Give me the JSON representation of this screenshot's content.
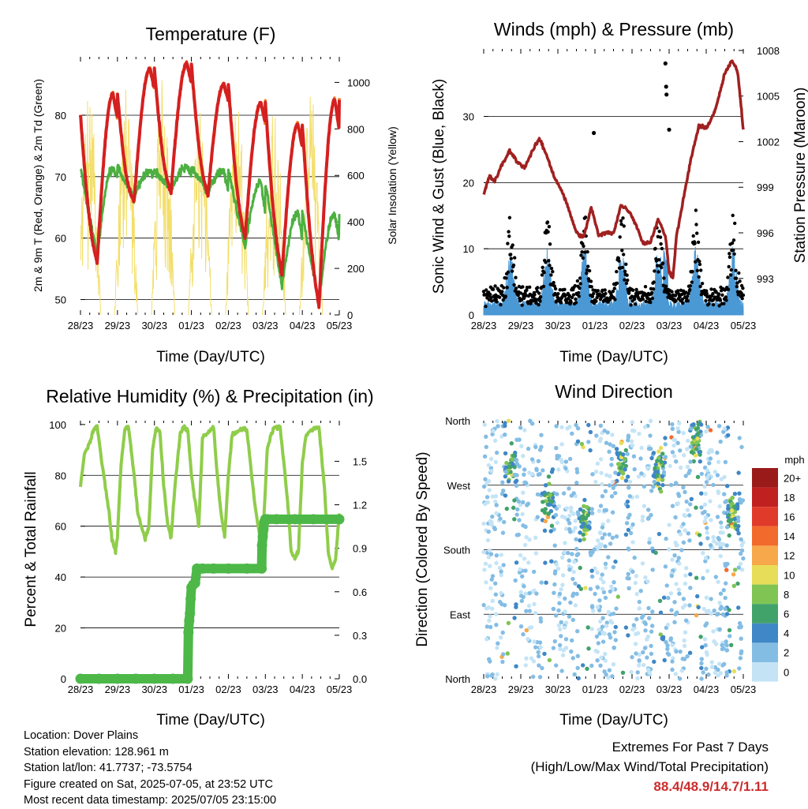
{
  "footer": {
    "location": "Location: Dover Plains",
    "elevation": "Station elevation: 128.961 m",
    "latlon": "Station lat/lon: 41.7737; -73.5754",
    "created": "Figure created on Sat, 2025-07-05, at 23:52 UTC",
    "recent": "Most recent data timestamp: 2025/07/05 23:15:00",
    "extremes_title": "Extremes For Past 7 Days",
    "extremes_subtitle": "(High/Low/Max Wind/Total Precipitation)",
    "extremes_values": "88.4/48.9/14.7/1.11"
  },
  "chart_data": [
    {
      "type": "line",
      "title": "Temperature (F)",
      "xlabel": "Time (Day/UTC)",
      "ylabel": "2m & 9m T (Red, Orange) & 2m Td (Green)",
      "y2label": "Solar Insolation (Yellow)",
      "x_ticks": [
        "28/23",
        "29/23",
        "30/23",
        "01/23",
        "02/23",
        "03/23",
        "04/23",
        "05/23"
      ],
      "xlim": [
        0,
        7
      ],
      "y_ticks": [
        50,
        60,
        70,
        80
      ],
      "ylim": [
        47.5,
        89.5
      ],
      "y2_ticks": [
        0,
        200,
        400,
        600,
        800,
        1000
      ],
      "y2lim": [
        0,
        1110
      ],
      "colors": {
        "t2m": "#d42020",
        "t9m": "#f07a20",
        "td2m": "#4cb040",
        "solar": "#f3de6a"
      },
      "daily_extremes": [
        {
          "day": 0,
          "max": 83.5,
          "min": 56.0,
          "dew_low": 57.0,
          "dew_high": 71.5,
          "solar_peak": 965
        },
        {
          "day": 1,
          "max": 87.5,
          "min": 66.0,
          "dew_low": 66.5,
          "dew_high": 71.0,
          "solar_peak": 1000
        },
        {
          "day": 2,
          "max": 88.4,
          "min": 67.5,
          "dew_low": 68.0,
          "dew_high": 71.5,
          "solar_peak": 1030
        },
        {
          "day": 3,
          "max": 85.0,
          "min": 67.0,
          "dew_low": 67.5,
          "dew_high": 71.0,
          "solar_peak": 960
        },
        {
          "day": 4,
          "max": 82.0,
          "min": 60.0,
          "dew_low": 58.5,
          "dew_high": 69.0,
          "solar_peak": 920
        },
        {
          "day": 5,
          "max": 78.5,
          "min": 54.0,
          "dew_low": 52.0,
          "dew_high": 64.0,
          "solar_peak": 920
        },
        {
          "day": 6,
          "max": 82.5,
          "min": 48.9,
          "dew_low": 49.5,
          "dew_high": 64.0,
          "solar_peak": 970
        }
      ]
    },
    {
      "type": "line",
      "title": "Winds (mph) & Pressure (mb)",
      "xlabel": "Time (Day/UTC)",
      "ylabel": "Sonic Wind & Gust (Blue, Black)",
      "y2label": "Station Pressure (Maroon)",
      "x_ticks": [
        "28/23",
        "29/23",
        "30/23",
        "01/23",
        "02/23",
        "03/23",
        "04/23",
        "05/23"
      ],
      "xlim": [
        0,
        7
      ],
      "y_ticks": [
        0,
        10,
        20,
        30
      ],
      "ylim": [
        0,
        40.2
      ],
      "y2_ticks": [
        993,
        996,
        999,
        1002,
        1005,
        1008
      ],
      "y2lim": [
        990.6,
        1008.1
      ],
      "colors": {
        "wind": "#4a98d4",
        "gust": "#000000",
        "pressure": "#a02020"
      },
      "pressure": {
        "x": [
          0,
          0.15,
          0.3,
          0.5,
          0.7,
          0.9,
          1.1,
          1.3,
          1.5,
          1.7,
          1.9,
          2.1,
          2.3,
          2.5,
          2.7,
          2.9,
          3.1,
          3.3,
          3.5,
          3.7,
          3.9,
          4.1,
          4.3,
          4.5,
          4.7,
          4.9,
          5.0,
          5.1,
          5.2,
          5.4,
          5.6,
          5.8,
          6.0,
          6.2,
          6.35,
          6.5,
          6.7,
          6.85,
          7.0
        ],
        "y": [
          998.5,
          999.7,
          999.4,
          1000.5,
          1001.4,
          1000.7,
          1000.3,
          1001.3,
          1002.2,
          1001.1,
          999.7,
          998.8,
          997.5,
          996.0,
          995.7,
          997.7,
          995.8,
          996.0,
          996.0,
          997.8,
          997.5,
          996.6,
          995.3,
          995.4,
          996.9,
          995.8,
          993.5,
          993.0,
          995.8,
          998.4,
          1001.0,
          1003.0,
          1002.9,
          1003.8,
          1005.0,
          1006.5,
          1007.3,
          1006.6,
          1002.8
        ]
      },
      "gust_outliers": [
        [
          2.97,
          27.5
        ],
        [
          4.9,
          38.0
        ],
        [
          4.92,
          34.5
        ],
        [
          4.93,
          33.3
        ],
        [
          5.0,
          28.0
        ]
      ]
    },
    {
      "type": "line",
      "title": "Relative Humidity (%) & Precipitation (in)",
      "xlabel": "Time (Day/UTC)",
      "ylabel": "Percent & Total Rainfall",
      "x_ticks": [
        "28/23",
        "29/23",
        "30/23",
        "01/23",
        "02/23",
        "03/23",
        "04/23",
        "05/23"
      ],
      "xlim": [
        0,
        7
      ],
      "y_ticks": [
        0,
        20,
        40,
        60,
        80,
        100
      ],
      "ylim": [
        0,
        101.5
      ],
      "y2_ticks": [
        "0.0",
        "0.3",
        "0.6",
        "0.9",
        "1.2",
        "1.5"
      ],
      "y2lim": [
        0,
        1.78
      ],
      "colors": {
        "rh": "#8fcd4a",
        "precip": "#4db848"
      },
      "rh": {
        "x": [
          0,
          0.1,
          0.25,
          0.35,
          0.45,
          0.6,
          0.75,
          0.85,
          0.95,
          1.0,
          1.1,
          1.2,
          1.3,
          1.45,
          1.55,
          1.75,
          1.85,
          1.95,
          2.05,
          2.15,
          2.25,
          2.35,
          2.45,
          2.55,
          2.7,
          2.8,
          2.9,
          3.0,
          3.1,
          3.2,
          3.3,
          3.45,
          3.6,
          3.7,
          3.8,
          3.9,
          4.0,
          4.1,
          4.2,
          4.35,
          4.5,
          4.7,
          4.85,
          4.95,
          5.05,
          5.15,
          5.25,
          5.4,
          5.6,
          5.7,
          5.8,
          5.9,
          6.0,
          6.1,
          6.25,
          6.45,
          6.6,
          6.7,
          6.8,
          6.9,
          7.0
        ],
        "y": [
          76,
          88,
          93,
          98,
          99,
          83,
          68,
          55,
          50,
          56,
          85,
          98,
          99,
          80,
          65,
          55,
          60,
          90,
          99,
          97,
          76,
          62,
          55,
          75,
          97,
          99,
          98,
          80,
          70,
          60,
          95,
          97,
          99,
          80,
          65,
          56,
          80,
          96,
          97,
          98,
          98,
          70,
          56,
          60,
          90,
          96,
          99,
          99,
          70,
          50,
          47,
          51,
          85,
          96,
          98,
          99,
          75,
          50,
          43,
          47,
          65
        ]
      },
      "precip": {
        "x": [
          0,
          0.5,
          1.0,
          1.5,
          2.0,
          2.5,
          2.9,
          2.92,
          2.94,
          2.96,
          2.98,
          3.0,
          3.05,
          3.1,
          3.15,
          3.3,
          3.6,
          4.0,
          4.5,
          4.9,
          4.91,
          4.93,
          4.95,
          4.97,
          5.0,
          5.05,
          5.3,
          5.8,
          6.3,
          7.0
        ],
        "y": [
          0,
          0,
          0,
          0,
          0,
          0,
          0,
          0.32,
          0.4,
          0.45,
          0.55,
          0.63,
          0.65,
          0.66,
          0.76,
          0.76,
          0.76,
          0.76,
          0.76,
          0.76,
          0.92,
          0.98,
          1.03,
          1.08,
          1.1,
          1.1,
          1.1,
          1.1,
          1.1,
          1.1
        ]
      }
    },
    {
      "type": "scatter",
      "title": "Wind Direction",
      "xlabel": "Time (Day/UTC)",
      "ylabel": "Direction (Colored By Speed)",
      "x_ticks": [
        "28/23",
        "29/23",
        "30/23",
        "01/23",
        "02/23",
        "03/23",
        "04/23",
        "05/23"
      ],
      "xlim": [
        0,
        7
      ],
      "y_ticks": [
        "North",
        "East",
        "South",
        "West",
        "North"
      ],
      "ylim": [
        0,
        360
      ],
      "legend": {
        "title": "mph",
        "labels": [
          "20+",
          "18",
          "16",
          "14",
          "12",
          "10",
          "8",
          "6",
          "4",
          "2",
          "0"
        ],
        "colors": [
          "#9a1a1a",
          "#c02020",
          "#e03a2a",
          "#f26a2c",
          "#f7a84a",
          "#e8dd58",
          "#80c454",
          "#42a36a",
          "#3f87c6",
          "#84bde4",
          "#c4e4f6"
        ]
      }
    }
  ]
}
